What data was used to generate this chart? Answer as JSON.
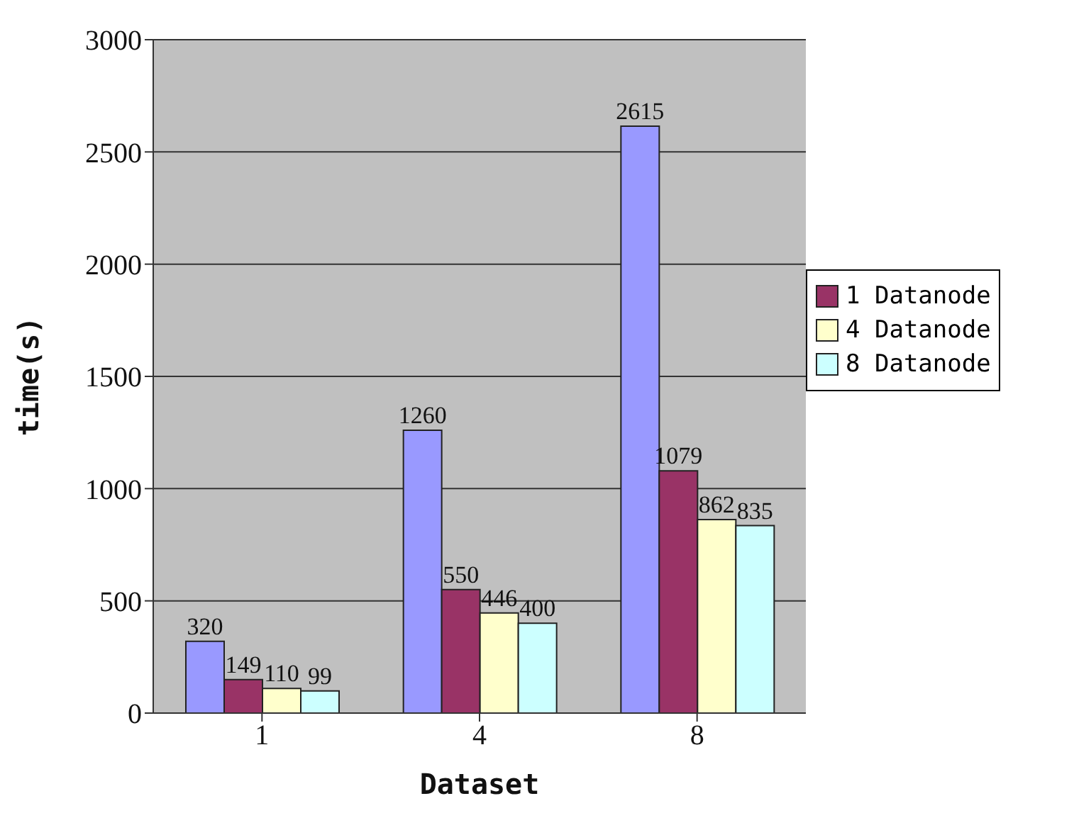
{
  "chart_data": {
    "type": "bar",
    "xlabel": "Dataset",
    "ylabel": "time(s)",
    "categories": [
      "1",
      "4",
      "8"
    ],
    "series": [
      {
        "color": "#9999ff",
        "values": [
          320,
          1260,
          2615
        ]
      },
      {
        "name": "1 Datanode",
        "color": "#993366",
        "values": [
          149,
          550,
          1079
        ]
      },
      {
        "name": "4 Datanode",
        "color": "#ffffcc",
        "values": [
          110,
          446,
          862
        ]
      },
      {
        "name": "8 Datanode",
        "color": "#ccffff",
        "values": [
          99,
          400,
          835
        ]
      }
    ],
    "ylim": [
      0,
      3000
    ],
    "yticks": [
      0,
      500,
      1000,
      1500,
      2000,
      2500,
      3000
    ],
    "grid": "y",
    "legend": "right",
    "data_labels": true
  }
}
